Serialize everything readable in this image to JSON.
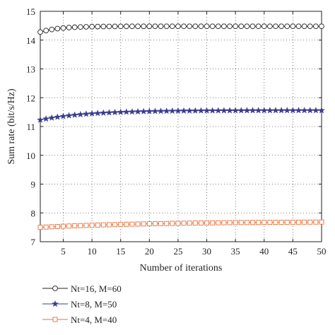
{
  "chart_data": {
    "type": "line",
    "xlabel": "Number of iterations",
    "ylabel": "Sum rate (bit/s/Hz)",
    "xlim": [
      1,
      50
    ],
    "ylim": [
      7,
      15
    ],
    "xticks": [
      5,
      10,
      15,
      20,
      25,
      30,
      35,
      40,
      45,
      50
    ],
    "yticks": [
      7,
      8,
      9,
      10,
      11,
      12,
      13,
      14,
      15
    ],
    "grid": true,
    "grid_style": "dotted",
    "legend_position": "bottom-left, below axes",
    "series": [
      {
        "name": "Nt=16, M=60",
        "color": "#231f20",
        "marker": "circle",
        "start": 14.28,
        "end": 14.48,
        "rate": 0.3
      },
      {
        "name": "Nt=8, M=50",
        "color": "#3b3b8f",
        "marker": "star",
        "start": 11.23,
        "end": 11.56,
        "rate": 0.12
      },
      {
        "name": "Nt=4, M=40",
        "color": "#e8703a",
        "marker": "square",
        "start": 7.5,
        "end": 7.7,
        "rate": 0.05
      }
    ]
  }
}
